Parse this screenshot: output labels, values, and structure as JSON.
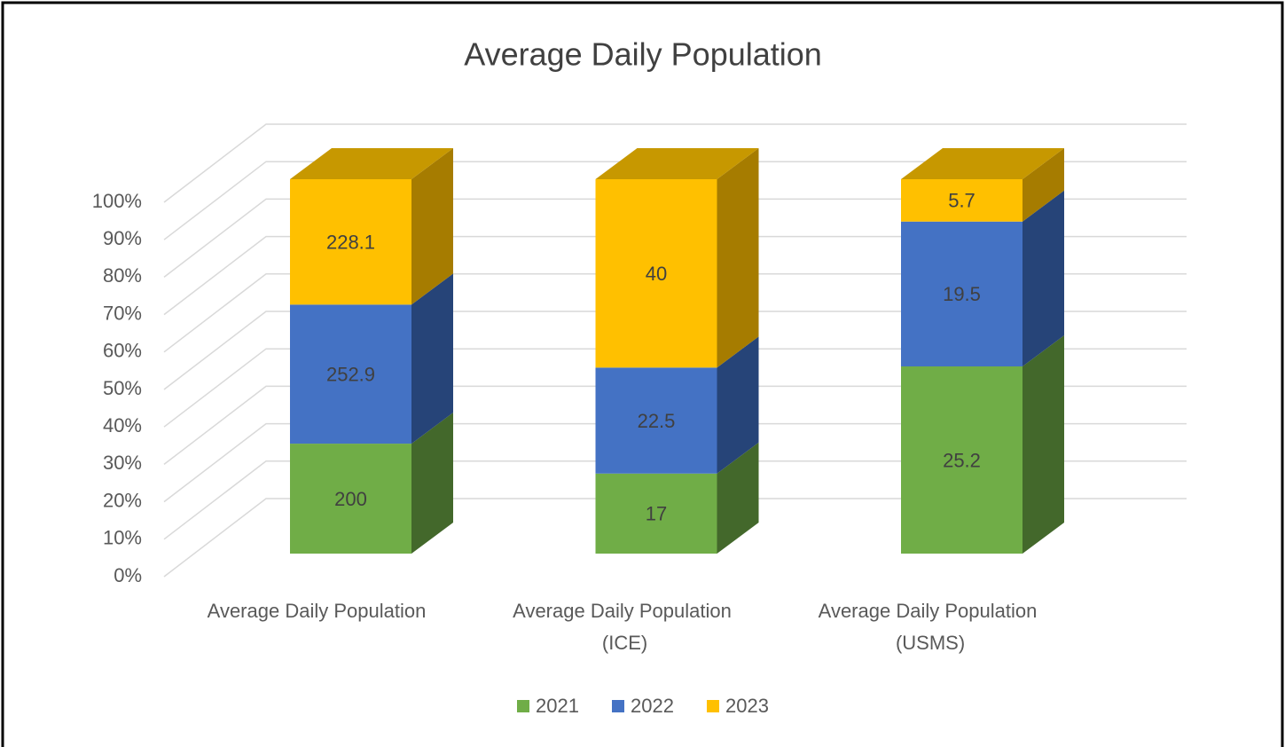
{
  "chart_data": {
    "type": "bar",
    "stacking": "percent",
    "three_d": true,
    "title": "Average Daily Population",
    "categories": [
      "Average Daily Population",
      "Average Daily Population (ICE)",
      "Average Daily Population (USMS)"
    ],
    "series": [
      {
        "name": "2021",
        "color": "#70ad47",
        "side_color": "#43682b",
        "top_color": "#4f7a32",
        "values": [
          200,
          17,
          25.2
        ]
      },
      {
        "name": "2022",
        "color": "#4472c4",
        "side_color": "#264478",
        "top_color": "#2f5597",
        "values": [
          252.9,
          22.5,
          19.5
        ]
      },
      {
        "name": "2023",
        "color": "#ffc000",
        "side_color": "#a67c00",
        "top_color": "#c79800",
        "values": [
          228.1,
          40,
          5.7
        ]
      }
    ],
    "ylim": [
      0,
      100
    ],
    "yticks": [
      {
        "value": 0,
        "label": "0%"
      },
      {
        "value": 10,
        "label": "10%"
      },
      {
        "value": 20,
        "label": "20%"
      },
      {
        "value": 30,
        "label": "30%"
      },
      {
        "value": 40,
        "label": "40%"
      },
      {
        "value": 50,
        "label": "50%"
      },
      {
        "value": 60,
        "label": "60%"
      },
      {
        "value": 70,
        "label": "70%"
      },
      {
        "value": 80,
        "label": "80%"
      },
      {
        "value": 90,
        "label": "90%"
      },
      {
        "value": 100,
        "label": "100%"
      }
    ],
    "grid": true,
    "legend": "bottom"
  }
}
